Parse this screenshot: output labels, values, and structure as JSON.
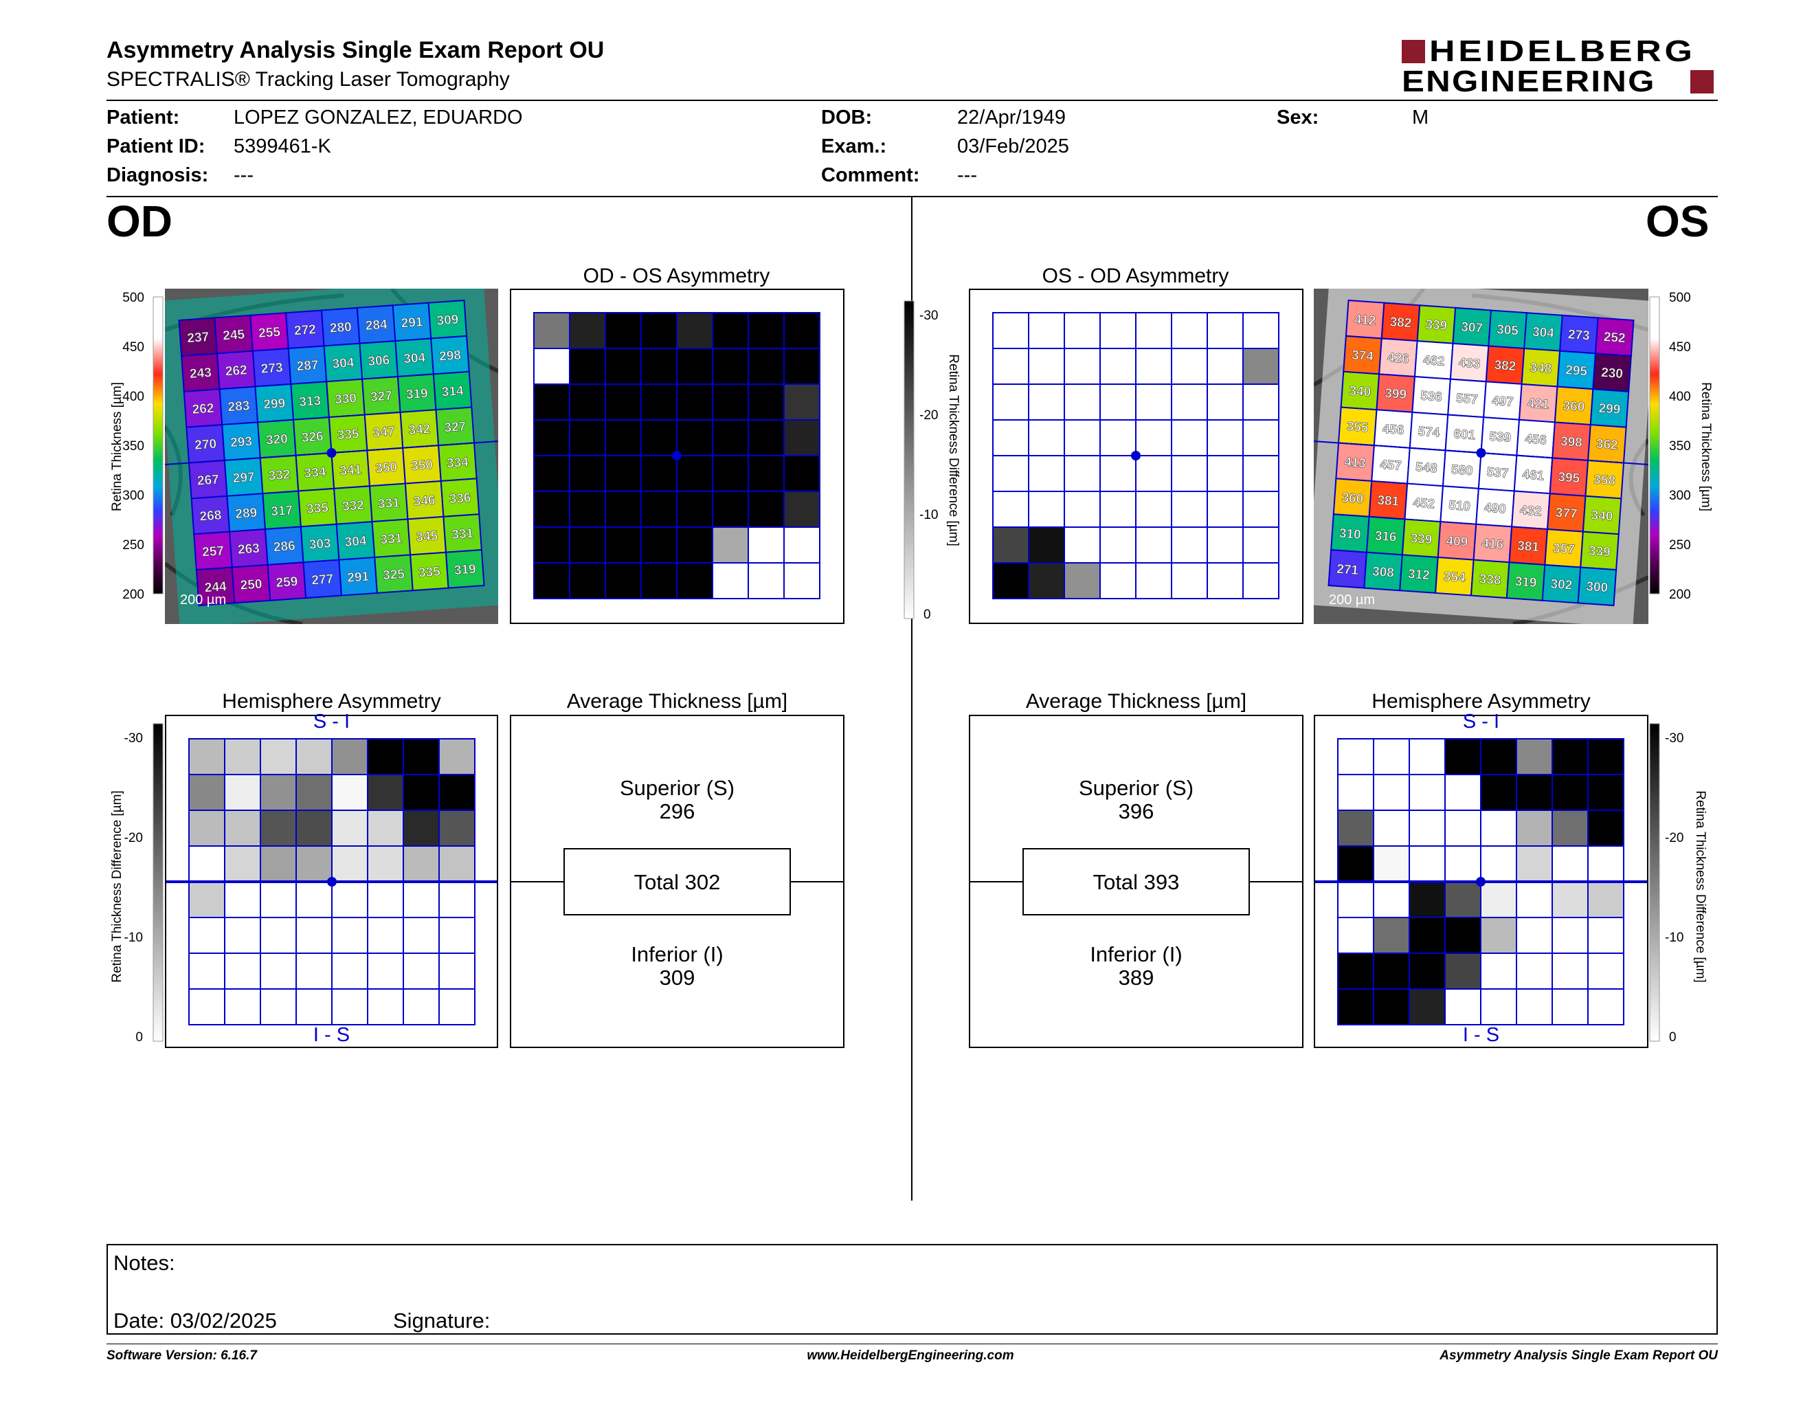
{
  "header": {
    "title": "Asymmetry Analysis Single Exam Report OU",
    "subtitle": "SPECTRALIS® Tracking Laser Tomography",
    "logo_line1": "HEIDELBERG",
    "logo_line2": "ENGINEERING"
  },
  "patient": {
    "patient_label": "Patient:",
    "patient_value": "LOPEZ GONZALEZ, EDUARDO",
    "id_label": "Patient ID:",
    "id_value": "5399461-K",
    "diagnosis_label": "Diagnosis:",
    "diagnosis_value": "---",
    "dob_label": "DOB:",
    "dob_value": "22/Apr/1949",
    "exam_label": "Exam.:",
    "exam_value": "03/Feb/2025",
    "comment_label": "Comment:",
    "comment_value": "---",
    "sex_label": "Sex:",
    "sex_value": "M"
  },
  "od": {
    "eye_label": "OD",
    "asym_title": "OD - OS Asymmetry",
    "hemi_title": "Hemisphere Asymmetry",
    "avg_title": "Average Thickness [µm]",
    "scale_bar": "200 µm",
    "thickness": [
      [
        237,
        245,
        255,
        272,
        280,
        284,
        291,
        309
      ],
      [
        243,
        262,
        273,
        287,
        304,
        306,
        304,
        298
      ],
      [
        262,
        283,
        299,
        313,
        330,
        327,
        319,
        314
      ],
      [
        270,
        293,
        320,
        326,
        335,
        347,
        342,
        327
      ],
      [
        267,
        297,
        332,
        334,
        341,
        350,
        350,
        334
      ],
      [
        268,
        289,
        317,
        335,
        332,
        331,
        346,
        336
      ],
      [
        257,
        263,
        286,
        303,
        304,
        331,
        345,
        331
      ],
      [
        244,
        250,
        259,
        277,
        291,
        325,
        335,
        319
      ]
    ],
    "asym_diff": [
      [
        -16,
        -26,
        -30,
        -30,
        -26,
        -30,
        -30,
        -30
      ],
      [
        0,
        -30,
        -30,
        -30,
        -30,
        -30,
        -30,
        -30
      ],
      [
        -30,
        -30,
        -30,
        -30,
        -30,
        -30,
        -30,
        -24
      ],
      [
        -30,
        -30,
        -30,
        -30,
        -30,
        -30,
        -30,
        -26
      ],
      [
        -30,
        -30,
        -30,
        -30,
        -30,
        -30,
        -30,
        -30
      ],
      [
        -30,
        -30,
        -30,
        -30,
        -30,
        -30,
        -30,
        -25
      ],
      [
        -30,
        -30,
        -30,
        -30,
        -30,
        -10,
        0,
        0
      ],
      [
        -30,
        -30,
        -30,
        -30,
        -30,
        0,
        0,
        0
      ]
    ],
    "hemi_diff": [
      [
        -8,
        -6,
        -5,
        -6,
        -13,
        -30,
        -30,
        -9
      ],
      [
        -14,
        -2,
        -13,
        -17,
        -1,
        -24,
        -30,
        -30
      ],
      [
        -8,
        -7,
        -20,
        -21,
        -3,
        -5,
        -25,
        -20
      ],
      [
        0,
        -5,
        -11,
        -10,
        -3,
        -4,
        -8,
        -7
      ],
      [
        -6,
        0,
        0,
        0,
        0,
        0,
        0,
        0
      ],
      [
        0,
        0,
        0,
        0,
        0,
        0,
        0,
        0
      ],
      [
        0,
        0,
        0,
        0,
        0,
        0,
        0,
        0
      ],
      [
        0,
        0,
        0,
        0,
        0,
        0,
        0,
        0
      ]
    ],
    "hemi_top": "S - I",
    "hemi_bottom": "I - S",
    "superior_label": "Superior (S)",
    "superior_value": "296",
    "total_label": "Total 302",
    "inferior_label": "Inferior (I)",
    "inferior_value": "309"
  },
  "os": {
    "eye_label": "OS",
    "asym_title": "OS - OD Asymmetry",
    "hemi_title": "Hemisphere Asymmetry",
    "avg_title": "Average Thickness [µm]",
    "scale_bar": "200 µm",
    "thickness": [
      [
        412,
        382,
        339,
        307,
        305,
        304,
        273,
        252
      ],
      [
        374,
        426,
        462,
        433,
        382,
        348,
        295,
        230
      ],
      [
        340,
        399,
        536,
        557,
        497,
        421,
        360,
        299
      ],
      [
        355,
        456,
        574,
        601,
        539,
        456,
        398,
        362
      ],
      [
        413,
        457,
        548,
        580,
        537,
        461,
        395,
        358
      ],
      [
        360,
        381,
        452,
        510,
        490,
        432,
        377,
        340
      ],
      [
        310,
        316,
        339,
        409,
        416,
        381,
        357,
        339
      ],
      [
        271,
        308,
        312,
        354,
        338,
        319,
        302,
        300
      ]
    ],
    "asym_diff": [
      [
        0,
        0,
        0,
        0,
        0,
        0,
        0,
        0
      ],
      [
        0,
        0,
        0,
        0,
        0,
        0,
        0,
        -14
      ],
      [
        0,
        0,
        0,
        0,
        0,
        0,
        0,
        0
      ],
      [
        0,
        0,
        0,
        0,
        0,
        0,
        0,
        0
      ],
      [
        0,
        0,
        0,
        0,
        0,
        0,
        0,
        0
      ],
      [
        0,
        0,
        0,
        0,
        0,
        0,
        0,
        0
      ],
      [
        -22,
        -28,
        0,
        0,
        0,
        0,
        0,
        0
      ],
      [
        -30,
        -26,
        -13,
        0,
        0,
        0,
        0,
        0
      ]
    ],
    "hemi_diff": [
      [
        0,
        0,
        0,
        -30,
        -30,
        -14,
        -30,
        -30
      ],
      [
        0,
        0,
        0,
        0,
        -30,
        -30,
        -30,
        -30
      ],
      [
        -19,
        0,
        0,
        0,
        0,
        -9,
        -17,
        -30
      ],
      [
        -30,
        -1,
        0,
        0,
        0,
        -5,
        0,
        0
      ],
      [
        0,
        0,
        -28,
        -20,
        -2,
        0,
        -4,
        -6
      ],
      [
        0,
        -17,
        -30,
        -30,
        -8,
        0,
        0,
        0
      ],
      [
        -30,
        -30,
        -30,
        -22,
        0,
        0,
        0,
        0
      ],
      [
        -30,
        -30,
        -26,
        0,
        0,
        0,
        0,
        0
      ]
    ],
    "hemi_top": "S - I",
    "hemi_bottom": "I - S",
    "superior_label": "Superior (S)",
    "superior_value": "396",
    "total_label": "Total 393",
    "inferior_label": "Inferior (I)",
    "inferior_value": "389"
  },
  "scales": {
    "thickness_label": "Retina Thickness [µm]",
    "thickness_ticks": [
      "500",
      "450",
      "400",
      "350",
      "300",
      "250",
      "200"
    ],
    "diff_label": "Retina Thickness Difference [µm]",
    "diff_ticks": [
      "-30",
      "-20",
      "-10",
      "0"
    ]
  },
  "notes": {
    "notes_label": "Notes:",
    "date_label": "Date: 03/02/2025",
    "signature_label": "Signature:"
  },
  "footer": {
    "software": "Software Version: 6.16.7",
    "website": "www.HeidelbergEngineering.com",
    "report": "Asymmetry Analysis Single Exam Report OU"
  },
  "colors": {
    "brand_red": "#8b1a2b",
    "grid_blue": "#0000cc"
  }
}
